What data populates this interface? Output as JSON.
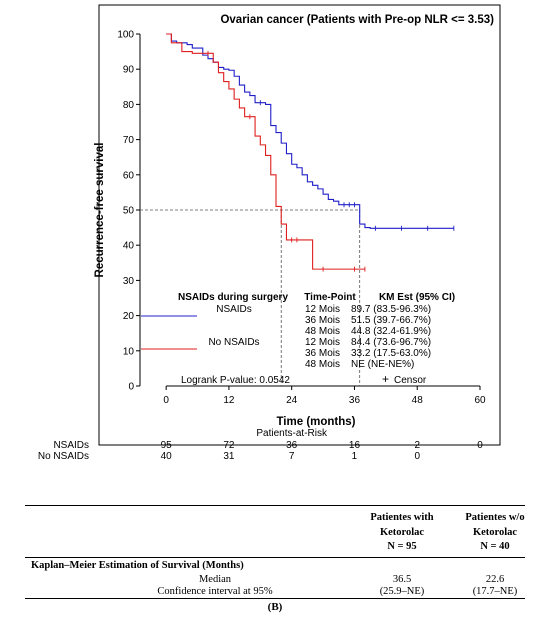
{
  "chart_data": {
    "type": "line",
    "title": "Ovarian cancer (Patients with Pre-op NLR <= 3.53)",
    "xlabel": "Time (months)",
    "ylabel": "Recurrence-free survival",
    "xlim": [
      -5,
      60
    ],
    "ylim": [
      0,
      100
    ],
    "xticks": [
      0,
      12,
      24,
      36,
      48,
      60
    ],
    "yticks": [
      0,
      10,
      20,
      30,
      40,
      50,
      60,
      70,
      80,
      90,
      100
    ],
    "grid": false,
    "median_reference_y": 50,
    "series": [
      {
        "name": "NSAIDs",
        "color": "#1f1fc8",
        "x": [
          0,
          1,
          2,
          4,
          5,
          7,
          8,
          9,
          10,
          11,
          12,
          13,
          14,
          15,
          16,
          17,
          18,
          19,
          20,
          21,
          22,
          23,
          24,
          25,
          26,
          27,
          28,
          29,
          30,
          31,
          32,
          33,
          34,
          35,
          36,
          37,
          38,
          39,
          40,
          45,
          50,
          55
        ],
        "y": [
          100,
          98,
          97.5,
          97,
          96,
          94,
          93,
          92,
          90.5,
          90,
          89.7,
          88,
          85.5,
          83.5,
          82.5,
          80.5,
          80.5,
          80,
          74,
          72,
          69,
          66,
          63,
          62,
          60,
          58,
          57,
          56,
          54.5,
          53,
          52.5,
          51.5,
          51.5,
          51.5,
          51.5,
          46,
          45,
          44.8,
          44.8,
          44.8,
          44.8,
          44.8
        ]
      },
      {
        "name": "No NSAIDs",
        "color": "#e01e1e",
        "x": [
          0,
          1,
          3,
          5,
          8,
          9,
          10,
          11,
          12,
          13,
          14,
          15,
          16,
          17,
          18,
          19,
          20,
          21,
          22,
          23,
          24,
          25,
          28,
          30,
          36,
          38
        ],
        "y": [
          100,
          97.5,
          95,
          94.5,
          94.5,
          92,
          89,
          86.5,
          84.4,
          81.5,
          79,
          76.5,
          76.5,
          71,
          68.5,
          65.5,
          60,
          51,
          46,
          41.5,
          41.5,
          41.5,
          33.2,
          33.2,
          33.2,
          33.2
        ]
      }
    ],
    "legend": {
      "placement": "bottom-center",
      "group_header": "NSAIDs during surgery",
      "timepoint_header": "Time-Point",
      "km_header": "KM Est (95% CI)",
      "rows": [
        {
          "group": "NSAIDs",
          "timepoint": "12 Mois",
          "km": "89.7 (83.5-96.3%)"
        },
        {
          "group": "",
          "timepoint": "36 Mois",
          "km": "51.5 (39.7-66.7%)"
        },
        {
          "group": "",
          "timepoint": "48 Mois",
          "km": "44.8 (32.4-61.9%)"
        },
        {
          "group": "No NSAIDs",
          "timepoint": "12 Mois",
          "km": "84.4 (73.6-96.7%)"
        },
        {
          "group": "",
          "timepoint": "36 Mois",
          "km": "33.2 (17.5-63.0%)"
        },
        {
          "group": "",
          "timepoint": "48 Mois",
          "km": "NE (NE-NE%)"
        }
      ],
      "logrank": "Logrank P-value: 0.0542",
      "censor_label": "Censor"
    },
    "risk_table": {
      "title": "Patients-at-Risk",
      "times": [
        0,
        12,
        24,
        36,
        48,
        60
      ],
      "rows": [
        {
          "label": "NSAIDs",
          "values": [
            "95",
            "72",
            "36",
            "16",
            "2",
            "0"
          ]
        },
        {
          "label": "No NSAIDs",
          "values": [
            "40",
            "31",
            "7",
            "1",
            "0",
            ""
          ]
        }
      ]
    }
  },
  "summary_table": {
    "col1_header": [
      "Patientes with",
      "Ketorolac",
      "N = 95"
    ],
    "col2_header": [
      "Patientes w/o",
      "Ketorolac",
      "N = 40"
    ],
    "section_title": "Kaplan–Meier Estimation of Survival (Months)",
    "rows": [
      {
        "label": "Median",
        "col1": "36.5",
        "col2": "22.6"
      },
      {
        "label": "Confidence interval at 95%",
        "col1": "(25.9–NE)",
        "col2": "(17.7–NE)"
      }
    ]
  },
  "caption": "(B)"
}
